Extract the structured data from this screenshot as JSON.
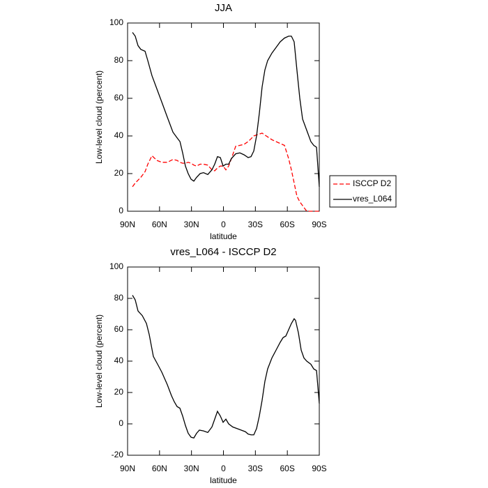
{
  "chart_data": [
    {
      "type": "line",
      "title": "JJA",
      "xlabel": "latitude",
      "ylabel": "Low-level cloud (percent)",
      "x": [
        85.4,
        82.8,
        80.2,
        77.6,
        73.6,
        71.0,
        67.1,
        62.5,
        57.9,
        52.7,
        47.4,
        43.5,
        40.8,
        38.3,
        35.7,
        33.1,
        30.4,
        27.8,
        25.2,
        21.9,
        18.7,
        14.7,
        10.8,
        8.2,
        5.6,
        2.9,
        0.3,
        -2.3,
        -4.9,
        -7.5,
        -11.5,
        -15.4,
        -19.3,
        -23.2,
        -25.9,
        -28.5,
        -31.1,
        -33.7,
        -36.3,
        -38.9,
        -41.5,
        -45.5,
        -49.4,
        -53.3,
        -57.3,
        -61.2,
        -63.8,
        -66.4,
        -69.0,
        -71.7,
        -74.3,
        -78.2,
        -82.1,
        -84.8,
        -87.4,
        -90.0
      ],
      "series": [
        {
          "name": "ISCCP D2",
          "color": "#ff0000",
          "style": "dashed",
          "values": [
            13,
            15,
            16.5,
            18,
            21,
            25,
            29.5,
            27,
            26,
            26,
            27.5,
            27,
            26,
            25.5,
            25.5,
            26,
            25.5,
            24.5,
            24,
            25,
            25,
            24.5,
            22,
            21.5,
            23,
            24,
            24,
            22,
            24,
            28,
            34.5,
            35,
            35.5,
            37,
            38.5,
            40,
            40.5,
            41,
            41.5,
            40.5,
            39.5,
            38,
            37,
            36,
            35,
            28,
            22,
            15,
            8,
            5,
            3,
            0,
            0,
            0,
            0,
            0
          ]
        },
        {
          "name": "vres_L064",
          "color": "#000000",
          "style": "solid",
          "values": [
            95,
            93,
            88,
            86,
            85,
            80,
            72,
            65,
            58,
            50,
            42,
            39,
            37,
            31,
            24,
            20,
            17,
            16,
            18,
            20,
            20.5,
            19.5,
            22,
            25,
            29,
            28.5,
            24,
            25,
            25,
            28,
            30.5,
            31,
            30,
            28.5,
            29,
            32,
            40,
            52,
            66,
            75,
            80,
            84,
            87,
            90,
            92,
            93,
            93,
            90,
            75,
            60,
            49,
            43,
            37,
            35,
            34,
            13
          ]
        }
      ],
      "xlim": [
        90,
        -90
      ],
      "xticks": [
        {
          "value": 90,
          "label": "90N"
        },
        {
          "value": 60,
          "label": "60N"
        },
        {
          "value": 30,
          "label": "30N"
        },
        0,
        {
          "value": -30,
          "label": "30S"
        },
        {
          "value": -60,
          "label": "60S"
        },
        {
          "value": -90,
          "label": "90S"
        }
      ],
      "ylim": [
        0,
        100
      ],
      "yticks": [
        0,
        20,
        40,
        60,
        80,
        100
      ],
      "legend": "right"
    },
    {
      "type": "line",
      "title": "vres_L064 - ISCCP D2",
      "xlabel": "latitude",
      "ylabel": "Low-level cloud (percent)",
      "x": [
        85.4,
        82.8,
        80.2,
        76.2,
        72.3,
        69.7,
        65.8,
        61.8,
        57.9,
        52.7,
        48.8,
        46.1,
        43.5,
        40.9,
        38.3,
        35.7,
        33.1,
        30.4,
        27.8,
        25.2,
        22.6,
        18.7,
        14.7,
        10.8,
        8.2,
        5.6,
        2.9,
        0.3,
        -2.3,
        -4.9,
        -8.8,
        -12.8,
        -16.7,
        -20.6,
        -23.2,
        -25.9,
        -28.5,
        -31.1,
        -33.7,
        -36.3,
        -38.9,
        -41.5,
        -45.5,
        -49.4,
        -53.3,
        -56.0,
        -58.6,
        -61.2,
        -63.8,
        -66.4,
        -67.7,
        -70.4,
        -73.0,
        -75.6,
        -78.2,
        -82.1,
        -84.8,
        -87.4,
        -90.0
      ],
      "color": "#000000",
      "style": "solid",
      "values": [
        82,
        79,
        72,
        69,
        64,
        57,
        43,
        38,
        33,
        25,
        18,
        14,
        11,
        10,
        5,
        -1,
        -6,
        -8.5,
        -9,
        -6,
        -4,
        -4.5,
        -5.5,
        -2,
        3,
        8,
        5,
        1,
        3,
        0,
        -2,
        -3,
        -4,
        -5,
        -6.5,
        -7,
        -7,
        -3,
        5,
        15,
        27,
        35,
        42,
        47,
        52,
        55,
        56,
        60,
        64,
        67,
        66,
        58,
        47,
        42,
        40,
        38,
        35,
        34,
        13
      ],
      "xlim": [
        90,
        -90
      ],
      "xticks": [
        {
          "value": 90,
          "label": "90N"
        },
        {
          "value": 60,
          "label": "60N"
        },
        {
          "value": 30,
          "label": "30N"
        },
        0,
        {
          "value": -30,
          "label": "30S"
        },
        {
          "value": -60,
          "label": "60S"
        },
        {
          "value": -90,
          "label": "90S"
        }
      ],
      "ylim": [
        -20,
        100
      ],
      "yticks": [
        -20,
        0,
        20,
        40,
        60,
        80,
        100
      ]
    }
  ]
}
